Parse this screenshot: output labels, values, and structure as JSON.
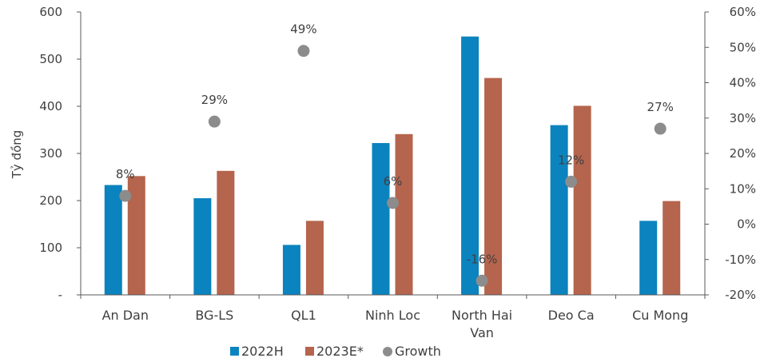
{
  "chart_data": {
    "type": "bar",
    "categories": [
      "An Dan",
      "BG-LS",
      "QL1",
      "Ninh Loc",
      "North Hai Van",
      "Deo Ca",
      "Cu Mong"
    ],
    "category_lines": [
      [
        "An Dan"
      ],
      [
        "BG-LS"
      ],
      [
        "QL1"
      ],
      [
        "Ninh Loc"
      ],
      [
        "North Hai",
        "Van"
      ],
      [
        "Deo Ca"
      ],
      [
        "Cu Mong"
      ]
    ],
    "series": [
      {
        "name": "2022H",
        "type": "bar",
        "axis": "left",
        "color": "#0A83BE",
        "values": [
          233,
          205,
          106,
          322,
          548,
          360,
          157
        ]
      },
      {
        "name": "2023E*",
        "type": "bar",
        "axis": "left",
        "color": "#B5644D",
        "values": [
          252,
          263,
          157,
          341,
          460,
          401,
          199
        ]
      },
      {
        "name": "Growth",
        "type": "scatter",
        "axis": "right",
        "color": "#8C8C8C",
        "values": [
          8,
          29,
          49,
          6,
          -16,
          12,
          27
        ]
      }
    ],
    "growth_labels": [
      "8%",
      "29%",
      "49%",
      "6%",
      "-16%",
      "12%",
      "27%"
    ],
    "ylabel": "Tỷ đồng",
    "ylim": [
      0,
      600
    ],
    "y_ticks": [
      {
        "value": 0,
        "label": "-"
      },
      {
        "value": 100,
        "label": "100"
      },
      {
        "value": 200,
        "label": "200"
      },
      {
        "value": 300,
        "label": "300"
      },
      {
        "value": 400,
        "label": "400"
      },
      {
        "value": 500,
        "label": "500"
      },
      {
        "value": 600,
        "label": "600"
      }
    ],
    "y2lim": [
      -20,
      60
    ],
    "y2_ticks": [
      {
        "value": -20,
        "label": "-20%"
      },
      {
        "value": -10,
        "label": "-10%"
      },
      {
        "value": 0,
        "label": "0%"
      },
      {
        "value": 10,
        "label": "10%"
      },
      {
        "value": 20,
        "label": "20%"
      },
      {
        "value": 30,
        "label": "30%"
      },
      {
        "value": 40,
        "label": "40%"
      },
      {
        "value": 50,
        "label": "50%"
      },
      {
        "value": 60,
        "label": "60%"
      }
    ],
    "legend_position": "bottom",
    "grid": false,
    "axis_color": "#595959",
    "text_color": "#404040"
  }
}
